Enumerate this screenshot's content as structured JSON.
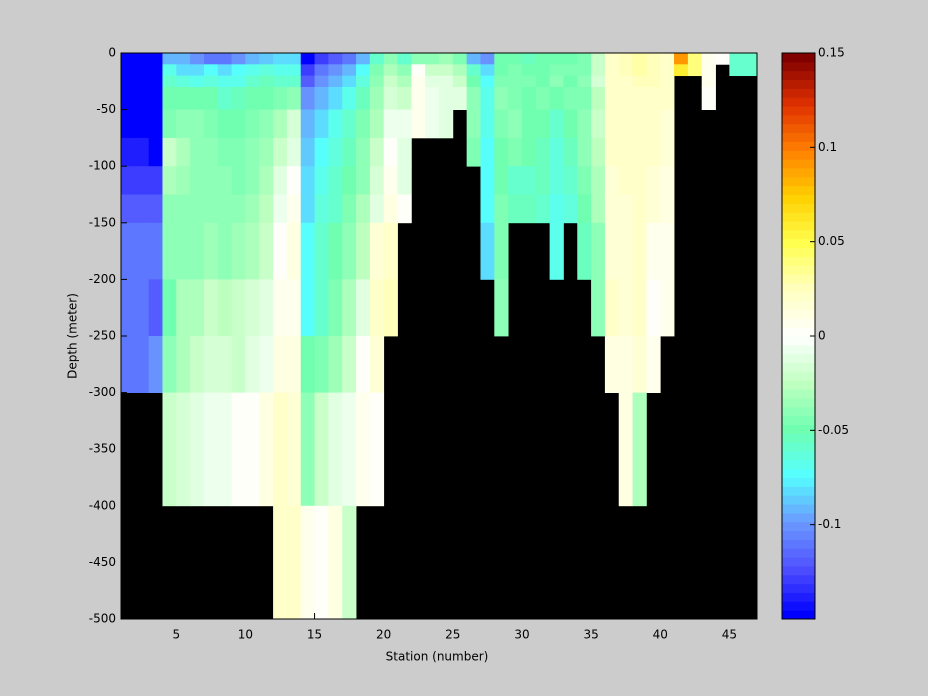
{
  "chart_data": {
    "type": "heatmap",
    "xlabel": "Station (number)",
    "ylabel": "Depth (meter)",
    "x": [
      1,
      2,
      3,
      4,
      5,
      6,
      7,
      8,
      9,
      10,
      11,
      12,
      13,
      14,
      15,
      16,
      17,
      18,
      19,
      20,
      21,
      22,
      23,
      24,
      25,
      26,
      27,
      28,
      29,
      30,
      31,
      32,
      33,
      34,
      35,
      36,
      37,
      38,
      39,
      40,
      41,
      42,
      43,
      44,
      45,
      46,
      47
    ],
    "y": [
      0,
      -10,
      -20,
      -30,
      -50,
      -75,
      -100,
      -125,
      -150,
      -200,
      -250,
      -300,
      -400,
      -500
    ],
    "z": [
      [
        -0.15,
        -0.15,
        -0.15,
        -0.15,
        -0.15,
        -0.14,
        -0.13,
        -0.12,
        -0.11,
        -0.11,
        -0.11,
        null,
        null
      ],
      [
        -0.15,
        -0.15,
        -0.15,
        -0.15,
        -0.15,
        -0.14,
        -0.13,
        -0.12,
        -0.11,
        -0.11,
        -0.11,
        null,
        null
      ],
      [
        -0.15,
        -0.15,
        -0.15,
        -0.15,
        -0.15,
        -0.15,
        -0.13,
        -0.12,
        -0.11,
        -0.12,
        -0.1,
        null,
        null
      ],
      [
        -0.09,
        -0.07,
        -0.06,
        -0.05,
        -0.045,
        -0.02,
        -0.03,
        -0.04,
        -0.04,
        -0.05,
        -0.04,
        -0.02,
        null
      ],
      [
        -0.09,
        -0.08,
        -0.065,
        -0.05,
        -0.04,
        -0.03,
        -0.035,
        -0.04,
        -0.04,
        -0.03,
        -0.03,
        -0.015,
        null
      ],
      [
        -0.1,
        -0.08,
        -0.07,
        -0.05,
        -0.04,
        -0.04,
        -0.04,
        -0.04,
        -0.04,
        -0.03,
        -0.02,
        -0.01,
        null
      ],
      [
        -0.11,
        -0.075,
        -0.065,
        -0.05,
        -0.045,
        -0.04,
        -0.04,
        -0.04,
        -0.035,
        -0.02,
        -0.015,
        -0.005,
        null
      ],
      [
        -0.11,
        -0.08,
        -0.07,
        -0.06,
        -0.05,
        -0.045,
        -0.04,
        -0.04,
        -0.04,
        -0.025,
        -0.015,
        -0.005,
        null
      ],
      [
        -0.1,
        -0.075,
        -0.07,
        -0.055,
        -0.05,
        -0.045,
        -0.045,
        -0.04,
        -0.035,
        -0.02,
        -0.02,
        0,
        null
      ],
      [
        -0.09,
        -0.07,
        -0.06,
        -0.05,
        -0.045,
        -0.04,
        -0.04,
        -0.035,
        -0.03,
        -0.015,
        -0.01,
        0,
        null
      ],
      [
        -0.085,
        -0.065,
        -0.055,
        -0.05,
        -0.04,
        -0.035,
        -0.03,
        -0.025,
        -0.02,
        -0.01,
        -0.005,
        0.01,
        null
      ],
      [
        -0.08,
        -0.07,
        -0.06,
        -0.045,
        -0.03,
        -0.02,
        -0.01,
        -0.005,
        0,
        0.005,
        0.01,
        0.02,
        0.02
      ],
      [
        -0.08,
        -0.07,
        -0.06,
        -0.04,
        -0.015,
        -0.01,
        0,
        0.005,
        0.01,
        0.005,
        0.01,
        0.015,
        0.02
      ],
      [
        -0.15,
        -0.13,
        -0.12,
        -0.1,
        -0.09,
        -0.085,
        -0.08,
        -0.08,
        -0.075,
        -0.075,
        -0.05,
        -0.04,
        0.005
      ],
      [
        -0.13,
        -0.11,
        -0.1,
        -0.09,
        -0.08,
        -0.075,
        -0.07,
        -0.065,
        -0.06,
        -0.06,
        -0.045,
        -0.02,
        0
      ],
      [
        -0.12,
        -0.1,
        -0.09,
        -0.08,
        -0.07,
        -0.065,
        -0.06,
        -0.06,
        -0.05,
        -0.045,
        -0.035,
        -0.01,
        0.01
      ],
      [
        -0.11,
        -0.09,
        -0.08,
        -0.07,
        -0.06,
        -0.055,
        -0.05,
        -0.045,
        -0.04,
        -0.03,
        -0.02,
        -0.005,
        -0.02
      ],
      [
        -0.09,
        -0.075,
        -0.065,
        -0.055,
        -0.045,
        -0.04,
        -0.04,
        -0.03,
        -0.025,
        -0.01,
        0,
        0.005,
        null
      ],
      [
        -0.06,
        -0.045,
        -0.04,
        -0.035,
        -0.03,
        -0.02,
        -0.015,
        -0.01,
        0.015,
        0.02,
        0.015,
        0,
        null
      ],
      [
        -0.04,
        -0.03,
        -0.02,
        -0.015,
        -0.005,
        0,
        0.005,
        0.01,
        0.02,
        0.025,
        null,
        null,
        null
      ],
      [
        -0.06,
        -0.04,
        -0.03,
        -0.02,
        -0.005,
        -0.01,
        -0.01,
        0,
        null,
        null,
        null,
        null,
        null
      ],
      [
        -0.04,
        0,
        0.005,
        0.005,
        0.005,
        null,
        null,
        null,
        null,
        null,
        null,
        null,
        null
      ],
      [
        -0.04,
        -0.02,
        -0.01,
        -0.005,
        -0.005,
        null,
        null,
        null,
        null,
        null,
        null,
        null,
        null
      ],
      [
        -0.035,
        -0.02,
        -0.01,
        -0.01,
        -0.01,
        null,
        null,
        null,
        null,
        null,
        null,
        null,
        null
      ],
      [
        -0.045,
        -0.03,
        -0.02,
        -0.01,
        null,
        null,
        null,
        null,
        null,
        null,
        null,
        null,
        null
      ],
      [
        -0.09,
        -0.06,
        -0.05,
        -0.04,
        -0.04,
        -0.045,
        null,
        null,
        null,
        null,
        null,
        null,
        null
      ],
      [
        -0.1,
        -0.08,
        -0.075,
        -0.07,
        -0.07,
        -0.075,
        -0.075,
        -0.075,
        -0.08,
        null,
        null,
        null,
        null
      ],
      [
        -0.05,
        -0.05,
        -0.045,
        -0.04,
        -0.045,
        -0.05,
        -0.05,
        -0.045,
        -0.045,
        -0.04,
        null,
        null,
        null
      ],
      [
        -0.05,
        -0.045,
        -0.045,
        -0.045,
        -0.04,
        -0.045,
        -0.06,
        -0.055,
        null,
        null,
        null,
        null,
        null
      ],
      [
        -0.055,
        -0.05,
        -0.045,
        -0.05,
        -0.05,
        -0.05,
        -0.06,
        -0.055,
        null,
        null,
        null,
        null,
        null
      ],
      [
        -0.05,
        -0.05,
        -0.05,
        -0.045,
        -0.05,
        -0.055,
        -0.055,
        -0.06,
        null,
        null,
        null,
        null,
        null
      ],
      [
        -0.05,
        -0.045,
        -0.04,
        -0.05,
        -0.06,
        -0.065,
        -0.065,
        -0.07,
        -0.07,
        null,
        null,
        null,
        null
      ],
      [
        -0.05,
        -0.045,
        -0.05,
        -0.045,
        -0.05,
        -0.055,
        -0.06,
        -0.065,
        null,
        null,
        null,
        null,
        null
      ],
      [
        -0.045,
        -0.045,
        -0.04,
        -0.045,
        -0.04,
        -0.04,
        -0.045,
        -0.05,
        -0.055,
        null,
        null,
        null,
        null
      ],
      [
        -0.02,
        -0.02,
        -0.015,
        -0.025,
        -0.02,
        -0.025,
        -0.03,
        -0.03,
        -0.04,
        -0.04,
        null,
        null,
        null
      ],
      [
        0.02,
        0.02,
        0.02,
        0.02,
        0.02,
        0.02,
        0.015,
        0.015,
        0.015,
        0.02,
        0.01,
        null,
        null
      ],
      [
        0.025,
        0.025,
        0.02,
        0.02,
        0.02,
        0.02,
        0.02,
        0.015,
        0.015,
        0.015,
        0.01,
        0.01,
        null
      ],
      [
        0.03,
        0.03,
        0.025,
        0.02,
        0.02,
        0.02,
        0.02,
        0.02,
        0.02,
        0.02,
        0.015,
        -0.03,
        null
      ],
      [
        0.025,
        0.025,
        0.025,
        0.02,
        0.02,
        0.02,
        0.015,
        0.015,
        0.005,
        0,
        0.005,
        null,
        null
      ],
      [
        0.02,
        0.02,
        0.02,
        0.02,
        0.015,
        0.015,
        0.01,
        0.01,
        0.005,
        0.005,
        null,
        null,
        null
      ],
      [
        0.09,
        0.06,
        null,
        null,
        null,
        null,
        null,
        null,
        null,
        null,
        null,
        null,
        null
      ],
      [
        0.04,
        0.04,
        null,
        null,
        null,
        null,
        null,
        null,
        null,
        null,
        null,
        null,
        null
      ],
      [
        0.005,
        0.005,
        0.005,
        0,
        null,
        null,
        null,
        null,
        null,
        null,
        null,
        null,
        null
      ],
      [
        0,
        null,
        null,
        null,
        null,
        null,
        null,
        null,
        null,
        null,
        null,
        null,
        null
      ],
      [
        -0.06,
        -0.06,
        null,
        null,
        null,
        null,
        null,
        null,
        null,
        null,
        null,
        null,
        null
      ],
      [
        -0.06,
        -0.06,
        null,
        null,
        null,
        null,
        null,
        null,
        null,
        null,
        null,
        null,
        null
      ]
    ],
    "xlim": [
      1,
      47
    ],
    "ylim": [
      -500,
      0
    ],
    "xticks": [
      5,
      10,
      15,
      20,
      25,
      30,
      35,
      40,
      45
    ],
    "yticks": [
      0,
      -50,
      -100,
      -150,
      -200,
      -250,
      -300,
      -350,
      -400,
      -450,
      -500
    ],
    "clim": [
      -0.15,
      0.15
    ],
    "cticks": [
      0.15,
      0.1,
      0.05,
      0,
      -0.05,
      -0.1
    ],
    "colormap": [
      "#0000ff",
      "#5050ff",
      "#6a9aff",
      "#55ffff",
      "#70ffb0",
      "#c0ffc0",
      "#ffffff",
      "#ffffc0",
      "#ffff50",
      "#ffd000",
      "#ff8000",
      "#e03000",
      "#800000"
    ],
    "colormap_levels": 64,
    "nan_color": "#000000"
  }
}
